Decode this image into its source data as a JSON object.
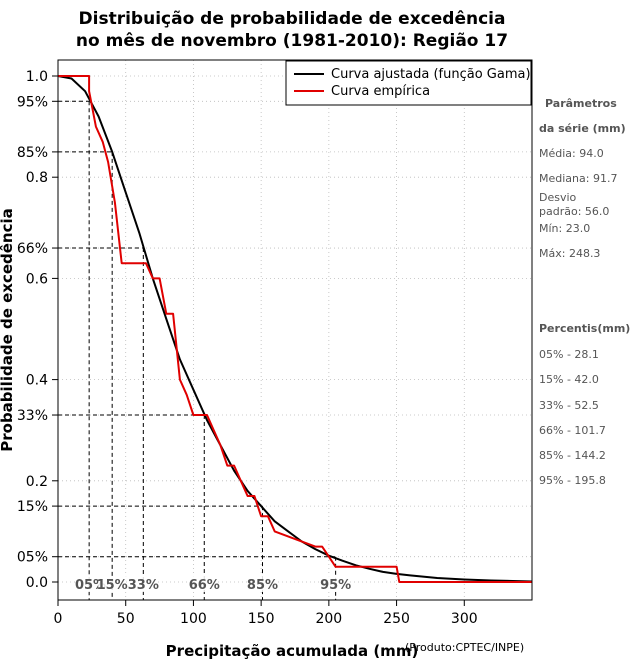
{
  "chart_data": {
    "type": "line",
    "title_line1": "Distribuição de probabilidade de excedência",
    "title_line2": "no mês de novembro (1981-2010): Região 17",
    "xlabel": "Precipitação acumulada (mm)",
    "ylabel": "Probabilidade de excedência",
    "credit": "(Produto:CPTEC/INPE)",
    "xlim": [
      0,
      350
    ],
    "ylim": [
      0,
      1
    ],
    "x_ticks": [
      0,
      50,
      100,
      150,
      200,
      250,
      300
    ],
    "y_ticks": [
      {
        "value": 1.0,
        "label": "1.0"
      },
      {
        "value": 0.95,
        "label": "95%"
      },
      {
        "value": 0.85,
        "label": "85%"
      },
      {
        "value": 0.8,
        "label": "0.8"
      },
      {
        "value": 0.66,
        "label": "66%"
      },
      {
        "value": 0.6,
        "label": "0.6"
      },
      {
        "value": 0.4,
        "label": "0.4"
      },
      {
        "value": 0.33,
        "label": "33%"
      },
      {
        "value": 0.2,
        "label": "0.2"
      },
      {
        "value": 0.15,
        "label": "15%"
      },
      {
        "value": 0.05,
        "label": "05%"
      },
      {
        "value": 0.0,
        "label": "0.0"
      }
    ],
    "legend": [
      {
        "name": "Curva ajustada (função Gama)",
        "color": "#000000"
      },
      {
        "name": "Curva empírica",
        "color": "#e00000"
      }
    ],
    "series": [
      {
        "name": "Curva ajustada (função Gama)",
        "color": "#000000",
        "x": [
          0,
          10,
          20,
          30,
          40,
          50,
          60,
          70,
          80,
          90,
          100,
          110,
          120,
          130,
          140,
          150,
          160,
          170,
          180,
          190,
          200,
          210,
          220,
          230,
          240,
          250,
          260,
          280,
          300,
          320,
          350
        ],
        "y": [
          1.0,
          0.995,
          0.97,
          0.92,
          0.85,
          0.77,
          0.69,
          0.6,
          0.52,
          0.44,
          0.38,
          0.32,
          0.27,
          0.22,
          0.18,
          0.15,
          0.12,
          0.1,
          0.08,
          0.065,
          0.052,
          0.042,
          0.033,
          0.026,
          0.02,
          0.016,
          0.013,
          0.008,
          0.005,
          0.003,
          0.001
        ]
      },
      {
        "name": "Curva empírica",
        "color": "#e00000",
        "x": [
          0,
          23,
          23,
          28,
          33,
          37,
          42,
          47,
          52,
          65,
          70,
          75,
          80,
          85,
          90,
          95,
          100,
          110,
          115,
          120,
          125,
          130,
          135,
          140,
          145,
          150,
          155,
          160,
          190,
          195,
          200,
          205,
          210,
          215,
          250,
          252,
          350
        ],
        "y": [
          1.0,
          1.0,
          0.97,
          0.9,
          0.87,
          0.83,
          0.75,
          0.63,
          0.63,
          0.63,
          0.6,
          0.6,
          0.53,
          0.53,
          0.4,
          0.37,
          0.33,
          0.33,
          0.3,
          0.27,
          0.23,
          0.23,
          0.2,
          0.17,
          0.17,
          0.13,
          0.13,
          0.1,
          0.07,
          0.07,
          0.05,
          0.03,
          0.03,
          0.03,
          0.03,
          0.0,
          0.0
        ]
      }
    ],
    "percentile_guides": [
      {
        "label": "05%",
        "x": 23,
        "y": 0.95
      },
      {
        "label": "15%",
        "x": 40,
        "y": 0.85
      },
      {
        "label": "33%",
        "x": 63,
        "y": 0.66
      },
      {
        "label": "66%",
        "x": 108,
        "y": 0.33
      },
      {
        "label": "85%",
        "x": 151,
        "y": 0.15
      },
      {
        "label": "95%",
        "x": 205,
        "y": 0.05
      }
    ],
    "percentile_labels": [
      "05%",
      "15%",
      "33%",
      "66%",
      "85%",
      "95%"
    ]
  },
  "side_panel": {
    "params_heading_1": "Parâmetros",
    "params_heading_2": "da série (mm)",
    "media": "Média: 94.0",
    "mediana": "Mediana: 91.7",
    "desvio_1": "Desvio",
    "desvio_2": "padrão: 56.0",
    "min": "Mín: 23.0",
    "max": "Máx: 248.3",
    "percentis_heading": "Percentis(mm)",
    "p05": "05% - 28.1",
    "p15": "15% - 42.0",
    "p33": "33% - 52.5",
    "p66": "66% - 101.7",
    "p85": "85% - 144.2",
    "p95": "95% - 195.8"
  }
}
